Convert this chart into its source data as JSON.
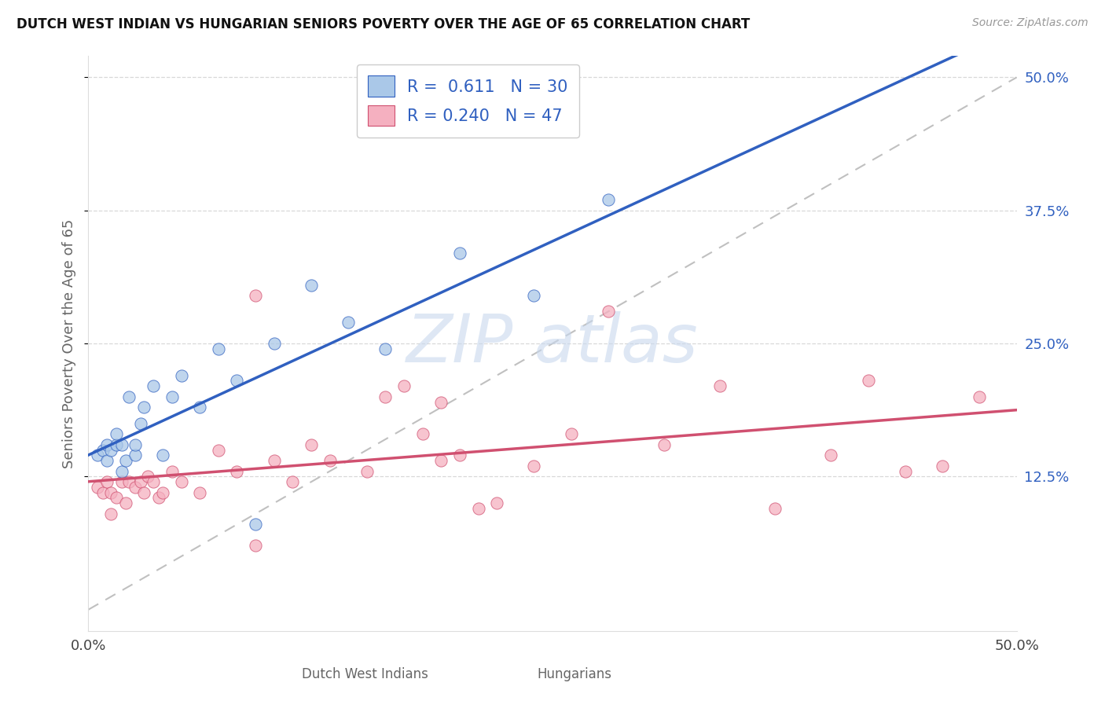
{
  "title": "DUTCH WEST INDIAN VS HUNGARIAN SENIORS POVERTY OVER THE AGE OF 65 CORRELATION CHART",
  "source": "Source: ZipAtlas.com",
  "ylabel": "Seniors Poverty Over the Age of 65",
  "xlim": [
    0.0,
    0.5
  ],
  "ylim": [
    -0.02,
    0.52
  ],
  "yticks": [
    0.125,
    0.25,
    0.375,
    0.5
  ],
  "ytick_labels": [
    "12.5%",
    "25.0%",
    "37.5%",
    "50.0%"
  ],
  "color_blue": "#aac8e8",
  "color_pink": "#f5b0c0",
  "line_color_blue": "#3060c0",
  "line_color_pink": "#d05070",
  "dashed_line_color": "#c0c0c0",
  "dutch_x": [
    0.005,
    0.008,
    0.01,
    0.01,
    0.012,
    0.015,
    0.015,
    0.018,
    0.018,
    0.02,
    0.022,
    0.025,
    0.025,
    0.028,
    0.03,
    0.035,
    0.04,
    0.045,
    0.05,
    0.06,
    0.07,
    0.08,
    0.09,
    0.1,
    0.12,
    0.14,
    0.16,
    0.2,
    0.24,
    0.28
  ],
  "dutch_y": [
    0.145,
    0.15,
    0.14,
    0.155,
    0.15,
    0.155,
    0.165,
    0.13,
    0.155,
    0.14,
    0.2,
    0.145,
    0.155,
    0.175,
    0.19,
    0.21,
    0.145,
    0.2,
    0.22,
    0.19,
    0.245,
    0.215,
    0.08,
    0.25,
    0.305,
    0.27,
    0.245,
    0.335,
    0.295,
    0.385
  ],
  "hungarian_x": [
    0.005,
    0.008,
    0.01,
    0.012,
    0.012,
    0.015,
    0.018,
    0.02,
    0.022,
    0.025,
    0.028,
    0.03,
    0.032,
    0.035,
    0.038,
    0.04,
    0.045,
    0.05,
    0.06,
    0.07,
    0.08,
    0.09,
    0.1,
    0.11,
    0.12,
    0.13,
    0.15,
    0.16,
    0.17,
    0.18,
    0.19,
    0.2,
    0.21,
    0.22,
    0.24,
    0.26,
    0.28,
    0.31,
    0.34,
    0.37,
    0.4,
    0.42,
    0.44,
    0.46,
    0.48,
    0.09,
    0.19
  ],
  "hungarian_y": [
    0.115,
    0.11,
    0.12,
    0.09,
    0.11,
    0.105,
    0.12,
    0.1,
    0.12,
    0.115,
    0.12,
    0.11,
    0.125,
    0.12,
    0.105,
    0.11,
    0.13,
    0.12,
    0.11,
    0.15,
    0.13,
    0.06,
    0.14,
    0.12,
    0.155,
    0.14,
    0.13,
    0.2,
    0.21,
    0.165,
    0.14,
    0.145,
    0.095,
    0.1,
    0.135,
    0.165,
    0.28,
    0.155,
    0.21,
    0.095,
    0.145,
    0.215,
    0.13,
    0.135,
    0.2,
    0.295,
    0.195
  ]
}
